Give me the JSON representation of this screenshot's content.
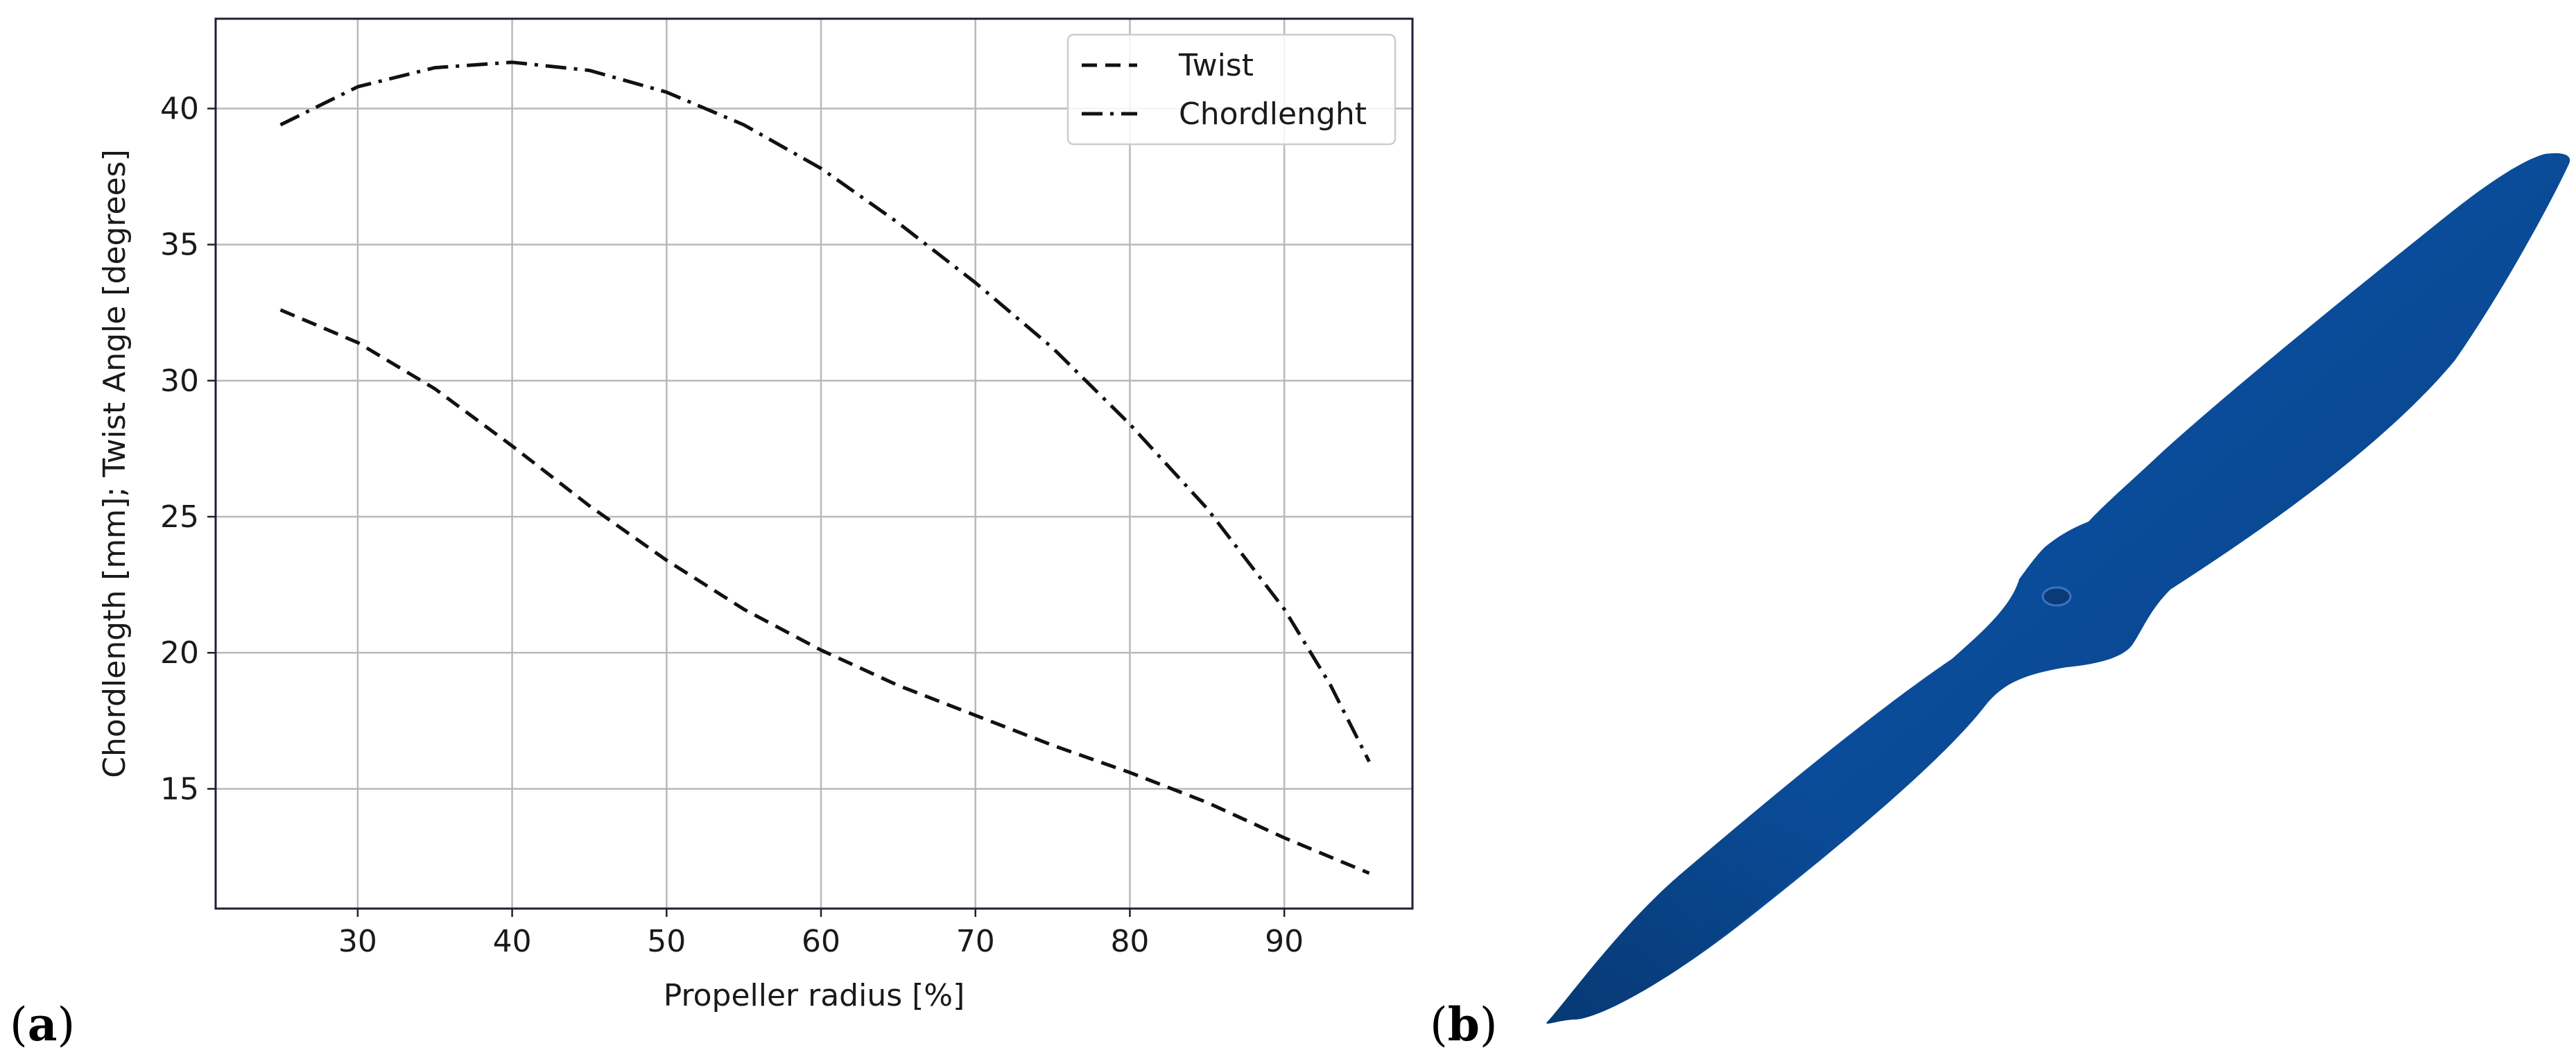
{
  "panels": {
    "a_label": {
      "open": "(",
      "letter": "a",
      "close": ")"
    },
    "b_label": {
      "open": "(",
      "letter": "b",
      "close": ")"
    }
  },
  "colors": {
    "line": "#111111",
    "grid": "#b9b9b9",
    "frame": "#1f1f3a",
    "propeller": "#0a4a96"
  },
  "chart_data": {
    "type": "line",
    "title": "",
    "xlabel": "Propeller radius [%]",
    "ylabel": "Chordlength [mm]; Twist Angle [degrees]",
    "xlim": [
      20.8,
      98.3
    ],
    "ylim": [
      10.6,
      43.3
    ],
    "xticks": [
      30,
      40,
      50,
      60,
      70,
      80,
      90
    ],
    "yticks": [
      15,
      20,
      25,
      30,
      35,
      40
    ],
    "grid": true,
    "legend_position": "top-right",
    "series": [
      {
        "name": "Twist",
        "style": "dashed",
        "x": [
          25,
          30,
          35,
          40,
          45,
          50,
          55,
          60,
          65,
          70,
          75,
          80,
          85,
          90,
          95.5
        ],
        "y": [
          32.6,
          31.4,
          29.7,
          27.6,
          25.4,
          23.4,
          21.6,
          20.1,
          18.8,
          17.7,
          16.6,
          15.6,
          14.5,
          13.2,
          11.9
        ]
      },
      {
        "name": "Chordlenght",
        "style": "dashdot",
        "x": [
          25,
          30,
          35,
          40,
          45,
          50,
          55,
          60,
          65,
          70,
          75,
          80,
          85,
          90,
          93,
          95.5
        ],
        "y": [
          39.4,
          40.8,
          41.5,
          41.7,
          41.4,
          40.6,
          39.4,
          37.8,
          35.8,
          33.6,
          31.2,
          28.4,
          25.3,
          21.6,
          18.8,
          16.0
        ]
      }
    ]
  },
  "figure_b": {
    "icon": "propeller-icon"
  }
}
